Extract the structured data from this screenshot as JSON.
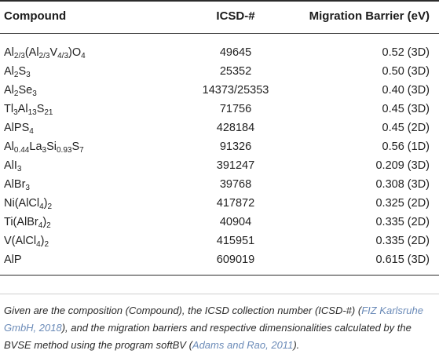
{
  "table": {
    "headers": [
      "Compound",
      "ICSD-#",
      "Migration Barrier (eV)"
    ],
    "rows": [
      {
        "compound": "Al2/3(Al2/3V4/3)O4",
        "icsd": "49645",
        "barrier": "0.52 (3D)"
      },
      {
        "compound": "Al2S3",
        "icsd": "25352",
        "barrier": "0.50 (3D)"
      },
      {
        "compound": "Al2Se3",
        "icsd": "14373/25353",
        "barrier": "0.40 (3D)"
      },
      {
        "compound": "Tl3Al13S21",
        "icsd": "71756",
        "barrier": "0.45 (3D)"
      },
      {
        "compound": "AlPS4",
        "icsd": "428184",
        "barrier": "0.45 (2D)"
      },
      {
        "compound": "Al0.44La3Si0.93S7",
        "icsd": "91326",
        "barrier": "0.56 (1D)"
      },
      {
        "compound": "AlI3",
        "icsd": "391247",
        "barrier": "0.209 (3D)"
      },
      {
        "compound": "AlBr3",
        "icsd": "39768",
        "barrier": "0.308 (3D)"
      },
      {
        "compound": "Ni(AlCl4)2",
        "icsd": "417872",
        "barrier": "0.325 (2D)"
      },
      {
        "compound": "Ti(AlBr4)2",
        "icsd": "40904",
        "barrier": "0.335 (2D)"
      },
      {
        "compound": "V(AlCl4)2",
        "icsd": "415951",
        "barrier": "0.335 (2D)"
      },
      {
        "compound": "AlP",
        "icsd": "609019",
        "barrier": "0.615 (3D)"
      }
    ]
  },
  "caption": {
    "part1": "Given are the composition (Compound), the ICSD collection number (ICSD-#) (",
    "cite1": "FIZ Karlsruhe GmbH, 2018",
    "part2": "), and the migration barriers and respective dimensionalities calculated by the BVSE method using the program softBV (",
    "cite2": "Adams and Rao, 2011",
    "part3": ")."
  }
}
